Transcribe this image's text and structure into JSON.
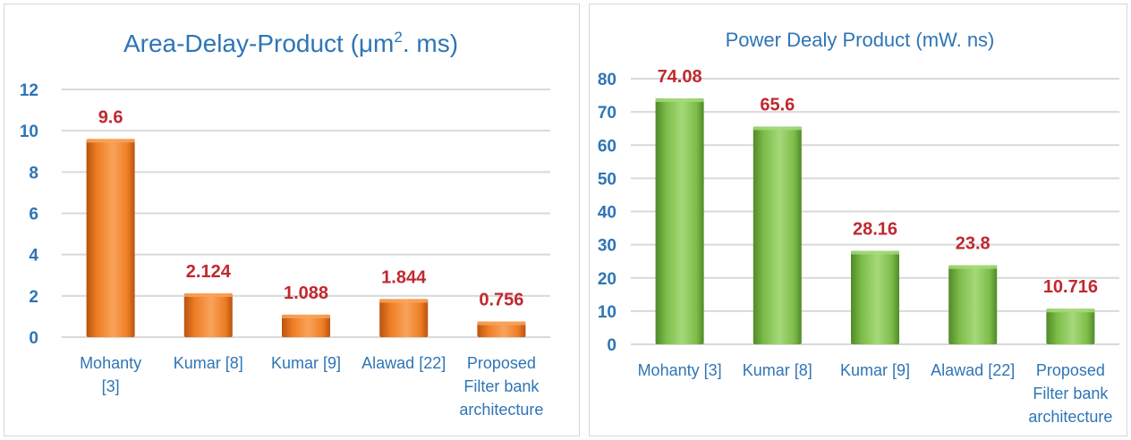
{
  "chart_data": [
    {
      "type": "bar",
      "title_main": "Area-Delay-Product (μm",
      "title_sup": "2",
      "title_tail": ". ms)",
      "categories": [
        [
          "Mohanty",
          "[3]"
        ],
        [
          "Kumar [8]"
        ],
        [
          "Kumar [9]"
        ],
        [
          "Alawad [22]"
        ],
        [
          "Proposed",
          "Filter bank",
          "architecture"
        ]
      ],
      "values": [
        9.6,
        2.124,
        1.088,
        1.844,
        0.756
      ],
      "value_labels": [
        "9.6",
        "2.124",
        "1.088",
        "1.844",
        "0.756"
      ],
      "ylim": [
        0,
        12
      ],
      "yticks": [
        0,
        2,
        4,
        6,
        8,
        10,
        12
      ],
      "grid": true,
      "legend": "none",
      "colors": {
        "bar_light": "#f9a35a",
        "bar_mid": "#ee7d24",
        "bar_dark": "#b9530f"
      }
    },
    {
      "type": "bar",
      "title_main": "Power Dealy Product (mW. ns)",
      "title_sup": "",
      "title_tail": "",
      "categories": [
        [
          "Mohanty [3]"
        ],
        [
          "Kumar [8]"
        ],
        [
          "Kumar [9]"
        ],
        [
          "Alawad [22]"
        ],
        [
          "Proposed",
          "Filter bank",
          "architecture"
        ]
      ],
      "values": [
        74.08,
        65.6,
        28.16,
        23.8,
        10.716
      ],
      "value_labels": [
        "74.08",
        "65.6",
        "28.16",
        "23.8",
        "10.716"
      ],
      "ylim": [
        0,
        80
      ],
      "yticks": [
        0,
        10,
        20,
        30,
        40,
        50,
        60,
        70,
        80
      ],
      "grid": true,
      "legend": "none",
      "colors": {
        "bar_light": "#a6d97a",
        "bar_mid": "#7cbc48",
        "bar_dark": "#4f8a2a"
      }
    }
  ]
}
